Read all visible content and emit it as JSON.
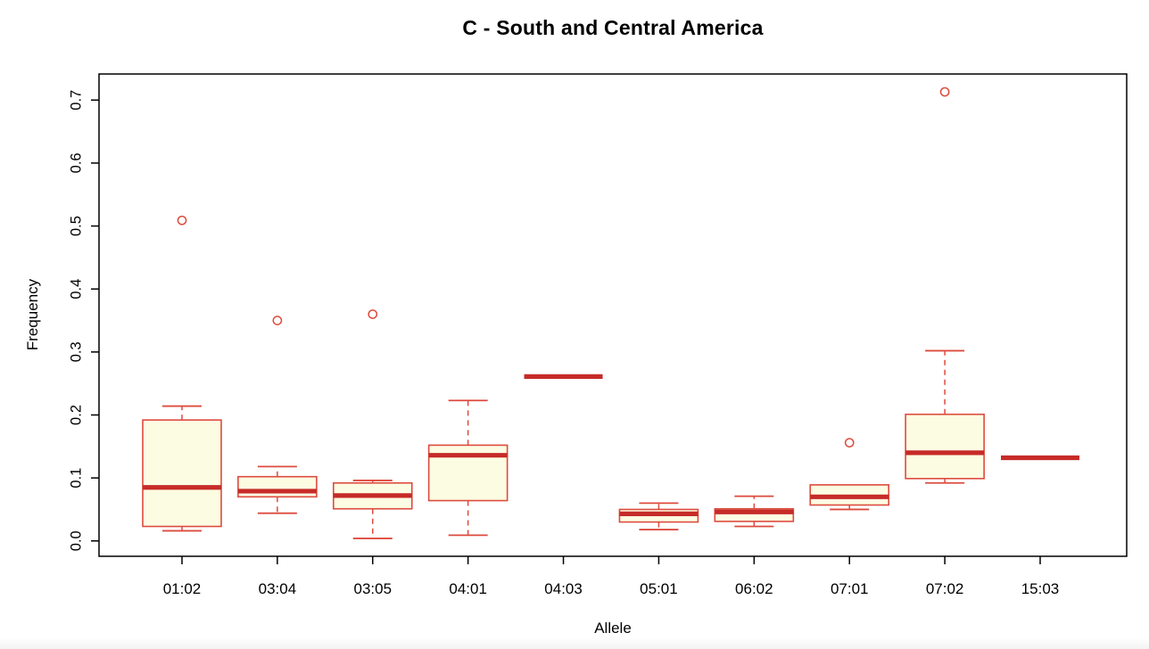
{
  "title": "C - South and Central America",
  "chart_data": {
    "type": "boxplot",
    "title": "C - South and Central America",
    "xlabel": "Allele",
    "ylabel": "Frequency",
    "ylim": [
      0,
      0.7
    ],
    "y_tick_labels": [
      "0.0",
      "0.1",
      "0.2",
      "0.3",
      "0.4",
      "0.5",
      "0.6",
      "0.7"
    ],
    "grid": "off",
    "legend": "none",
    "categories": [
      "01:02",
      "03:04",
      "03:05",
      "04:01",
      "04:03",
      "05:01",
      "06:02",
      "07:01",
      "07:02",
      "15:03"
    ],
    "series": [
      {
        "category": "01:02",
        "min": 0.016,
        "q1": 0.023,
        "median": 0.085,
        "q3": 0.192,
        "max": 0.214,
        "outliers": [
          0.509
        ]
      },
      {
        "category": "03:04",
        "min": 0.044,
        "q1": 0.07,
        "median": 0.079,
        "q3": 0.102,
        "max": 0.118,
        "outliers": [
          0.35
        ]
      },
      {
        "category": "03:05",
        "min": 0.004,
        "q1": 0.051,
        "median": 0.072,
        "q3": 0.092,
        "max": 0.096,
        "outliers": [
          0.36
        ]
      },
      {
        "category": "04:01",
        "min": 0.009,
        "q1": 0.064,
        "median": 0.136,
        "q3": 0.152,
        "max": 0.223,
        "outliers": []
      },
      {
        "category": "04:03",
        "min": 0.261,
        "q1": 0.261,
        "median": 0.261,
        "q3": 0.261,
        "max": 0.261,
        "outliers": []
      },
      {
        "category": "05:01",
        "min": 0.018,
        "q1": 0.03,
        "median": 0.043,
        "q3": 0.05,
        "max": 0.06,
        "outliers": []
      },
      {
        "category": "06:02",
        "min": 0.023,
        "q1": 0.031,
        "median": 0.046,
        "q3": 0.051,
        "max": 0.071,
        "outliers": []
      },
      {
        "category": "07:01",
        "min": 0.05,
        "q1": 0.057,
        "median": 0.07,
        "q3": 0.089,
        "max": 0.089,
        "outliers": [
          0.156
        ]
      },
      {
        "category": "07:02",
        "min": 0.092,
        "q1": 0.099,
        "median": 0.14,
        "q3": 0.201,
        "max": 0.302,
        "outliers": [
          0.713
        ]
      },
      {
        "category": "15:03",
        "min": 0.132,
        "q1": 0.132,
        "median": 0.132,
        "q3": 0.132,
        "max": 0.132,
        "outliers": []
      }
    ],
    "colors": {
      "box_fill": "#fcfce2",
      "box_border": "#dd4b3e",
      "median": "#c62b28",
      "outlier": "#dd4b3e",
      "axis": "#000000",
      "text": "#000000"
    }
  }
}
